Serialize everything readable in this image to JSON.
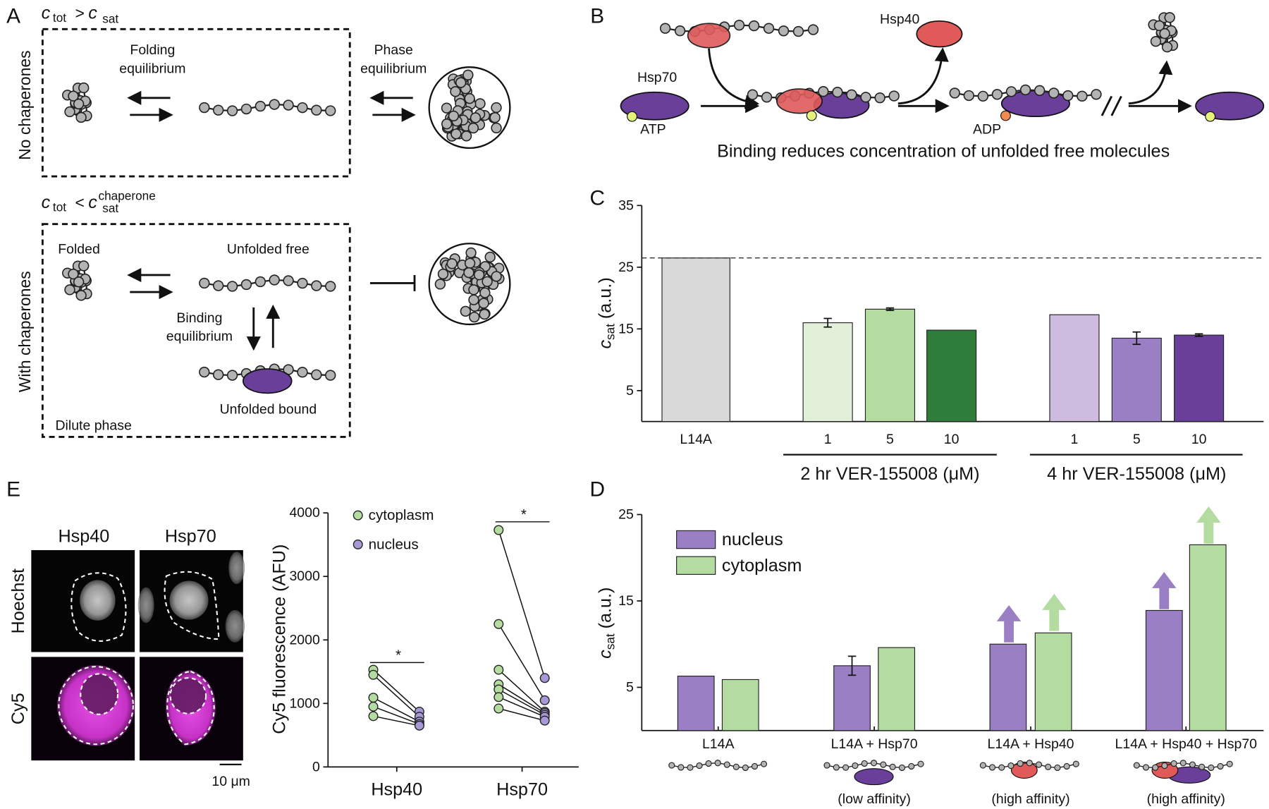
{
  "figure": {
    "panel_a": {
      "label": "A",
      "condition_1": [
        "c",
        "tot",
        ">",
        "c",
        "sat"
      ],
      "condition_2": [
        "c",
        "tot",
        "<",
        "c",
        "sat",
        "chaperone"
      ],
      "row_1_label": "No chaperones",
      "row_2_label": "With chaperones",
      "folding_equilibrium": [
        "Folding",
        "equilibrium"
      ],
      "phase_equilibrium": [
        "Phase",
        "equilibrium"
      ],
      "folded": "Folded",
      "unfolded_free": "Unfolded free",
      "binding_equilibrium": [
        "Binding",
        "equilibrium"
      ],
      "unfolded_bound": "Unfolded bound",
      "dilute_phase": "Dilute phase"
    },
    "panel_b": {
      "label": "B",
      "hsp40": "Hsp40",
      "hsp70": "Hsp70",
      "atp": "ATP",
      "adp": "ADP",
      "caption": "Binding reduces concentration of unfolded free molecules"
    }
  },
  "chart_data": [
    {
      "type": "bar",
      "label": "C",
      "y_label": [
        "c",
        "sat",
        "(a.u.)"
      ],
      "categories": [
        "L14A",
        "1",
        "5",
        "10",
        "1",
        "5",
        "10"
      ],
      "values": [
        26.5,
        16,
        18.2,
        14.8,
        17.3,
        13.5,
        14
      ],
      "errors": [
        null,
        0.7,
        0.2,
        null,
        null,
        1,
        0.2
      ],
      "colors": [
        "#d9d9da",
        "#e2f0d9",
        "#b5dca0",
        "#2e7d3a",
        "#cdbbe0",
        "#9b7fc4",
        "#6a3f9a"
      ],
      "group_labels": [
        "2 hr VER-155008 (μM)",
        "4 hr VER-155008 (μM)"
      ],
      "reference_line": 26.5,
      "ylim": [
        0,
        35
      ],
      "yticks": [
        5,
        15,
        25,
        35
      ]
    },
    {
      "type": "grouped-bar",
      "label": "D",
      "y_label": [
        "c",
        "sat",
        "(a.u.)"
      ],
      "categories": [
        "L14A",
        "L14A + Hsp70",
        "L14A + Hsp40",
        "L14A + Hsp40 + Hsp70"
      ],
      "category_notes": [
        null,
        "(low affinity)",
        "(high affinity)",
        "(high affinity)"
      ],
      "series": [
        {
          "name": "nucleus",
          "color": "#9b7fc4",
          "values": [
            6.3,
            7.5,
            10,
            13.9
          ],
          "errors": [
            null,
            1.1,
            null,
            null
          ]
        },
        {
          "name": "cytoplasm",
          "color": "#b5dca0",
          "values": [
            5.9,
            9.6,
            11.3,
            21.5
          ]
        }
      ],
      "ylim": [
        0,
        25
      ],
      "yticks": [
        5,
        15,
        25
      ]
    },
    {
      "type": "paired-scatter",
      "label": "E",
      "y_label": "Cy5 fluorescence (AFU)",
      "categories": [
        "Hsp40",
        "Hsp70"
      ],
      "series": [
        {
          "name": "cytoplasm",
          "color": "#b5dca0",
          "values": [
            [
              1530,
              1450,
              1090,
              950,
              800
            ],
            [
              3730,
              2250,
              1530,
              1300,
              1220,
              1100,
              920
            ]
          ]
        },
        {
          "name": "nucleus",
          "color": "#a899d6",
          "values": [
            [
              870,
              790,
              713,
              675,
              650
            ],
            [
              1400,
              1050,
              870,
              850,
              820,
              790,
              730
            ]
          ]
        }
      ],
      "annotations": [
        "*",
        "*"
      ],
      "ylim": [
        0,
        4000
      ],
      "yticks": [
        0,
        1000,
        2000,
        3000,
        4000
      ],
      "image_columns": [
        "Hsp40",
        "Hsp70"
      ],
      "image_rows": [
        "Hoechst",
        "Cy5"
      ],
      "scale_bar": "10 μm"
    }
  ]
}
